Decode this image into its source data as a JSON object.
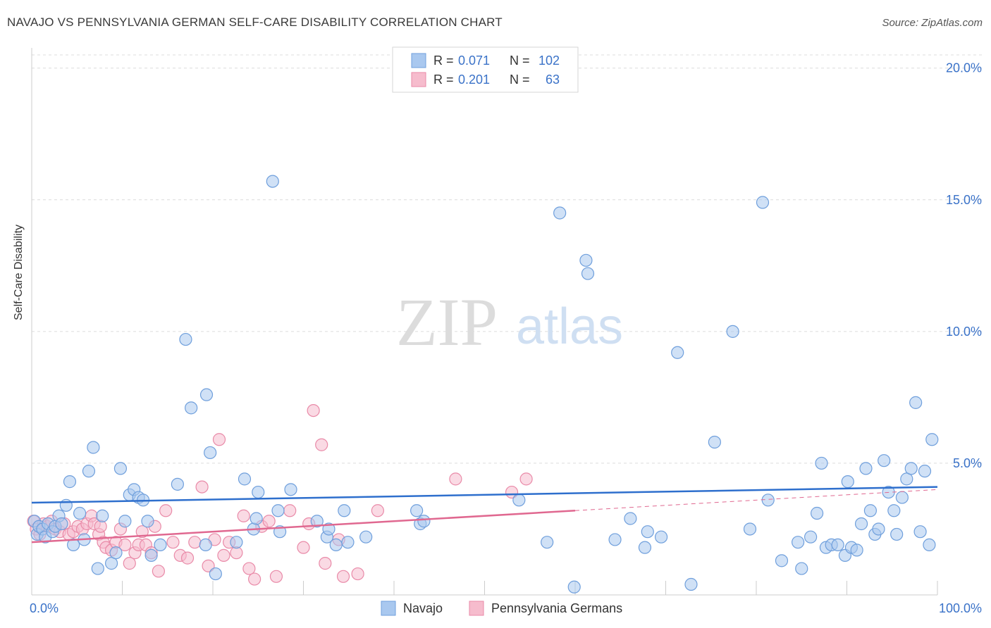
{
  "title": "NAVAJO VS PENNSYLVANIA GERMAN SELF-CARE DISABILITY CORRELATION CHART",
  "source": "Source: ZipAtlas.com",
  "watermark": {
    "zip": "ZIP",
    "atlas": "atlas"
  },
  "colors": {
    "navajo_fill": "#a9c8ef",
    "navajo_stroke": "#6f9fdc",
    "navajo_line": "#2e6fcd",
    "pg_fill": "#f6bccd",
    "pg_stroke": "#e98aa8",
    "pg_line": "#e06890",
    "axis_text": "#3a72c8",
    "grid": "#dcdcdc"
  },
  "legend": {
    "rows": [
      {
        "r_label": "R =",
        "r_value": "0.071",
        "n_label": "N =",
        "n_value": "102"
      },
      {
        "r_label": "R =",
        "r_value": "0.201",
        "n_label": "N =",
        "n_value": "63"
      }
    ]
  },
  "bottom_legend": [
    {
      "name": "Navajo"
    },
    {
      "name": "Pennsylvania Germans"
    }
  ],
  "chart_data": {
    "type": "scatter",
    "title": "NAVAJO VS PENNSYLVANIA GERMAN SELF-CARE DISABILITY CORRELATION CHART",
    "xlabel": "",
    "ylabel": "Self-Care Disability",
    "xlim": [
      0,
      100
    ],
    "ylim": [
      0,
      20.5
    ],
    "x_tick_labels": [
      "0.0%",
      "100.0%"
    ],
    "y_ticks": [
      5,
      10,
      15,
      20
    ],
    "y_tick_labels": [
      "5.0%",
      "10.0%",
      "15.0%",
      "20.0%"
    ],
    "series": [
      {
        "name": "Navajo",
        "r": 0.071,
        "n": 102,
        "trend": {
          "x": [
            0,
            100
          ],
          "y": [
            3.5,
            4.1
          ]
        },
        "points": [
          [
            0.3,
            2.8
          ],
          [
            0.6,
            2.3
          ],
          [
            0.8,
            2.6
          ],
          [
            1.2,
            2.5
          ],
          [
            1.5,
            2.2
          ],
          [
            1.8,
            2.7
          ],
          [
            2.3,
            2.4
          ],
          [
            2.6,
            2.6
          ],
          [
            3.0,
            3.0
          ],
          [
            3.3,
            2.7
          ],
          [
            3.8,
            3.4
          ],
          [
            4.2,
            4.3
          ],
          [
            4.6,
            1.9
          ],
          [
            5.3,
            3.1
          ],
          [
            5.8,
            2.1
          ],
          [
            6.3,
            4.7
          ],
          [
            6.8,
            5.6
          ],
          [
            7.3,
            1.0
          ],
          [
            7.8,
            3.0
          ],
          [
            8.8,
            1.2
          ],
          [
            9.3,
            1.6
          ],
          [
            9.8,
            4.8
          ],
          [
            10.3,
            2.8
          ],
          [
            10.8,
            3.8
          ],
          [
            11.3,
            4.0
          ],
          [
            11.8,
            3.7
          ],
          [
            12.3,
            3.6
          ],
          [
            12.8,
            2.8
          ],
          [
            13.2,
            1.5
          ],
          [
            14.2,
            1.9
          ],
          [
            16.1,
            4.2
          ],
          [
            17.0,
            9.7
          ],
          [
            17.6,
            7.1
          ],
          [
            19.2,
            1.9
          ],
          [
            19.3,
            7.6
          ],
          [
            19.7,
            5.4
          ],
          [
            20.3,
            0.8
          ],
          [
            22.6,
            2.0
          ],
          [
            23.5,
            4.4
          ],
          [
            24.5,
            2.5
          ],
          [
            24.8,
            2.9
          ],
          [
            25.0,
            3.9
          ],
          [
            26.6,
            15.7
          ],
          [
            27.2,
            3.2
          ],
          [
            27.4,
            2.4
          ],
          [
            28.6,
            4.0
          ],
          [
            31.5,
            2.8
          ],
          [
            32.6,
            2.2
          ],
          [
            32.8,
            2.5
          ],
          [
            33.6,
            1.9
          ],
          [
            34.5,
            3.2
          ],
          [
            34.9,
            2.0
          ],
          [
            36.9,
            2.2
          ],
          [
            42.5,
            3.2
          ],
          [
            42.9,
            2.7
          ],
          [
            43.3,
            2.8
          ],
          [
            53.8,
            3.6
          ],
          [
            56.9,
            2.0
          ],
          [
            58.3,
            14.5
          ],
          [
            59.9,
            0.3
          ],
          [
            61.2,
            12.7
          ],
          [
            61.4,
            12.2
          ],
          [
            64.4,
            2.1
          ],
          [
            66.1,
            2.9
          ],
          [
            67.7,
            1.8
          ],
          [
            68.0,
            2.4
          ],
          [
            69.5,
            2.2
          ],
          [
            71.3,
            9.2
          ],
          [
            72.8,
            0.4
          ],
          [
            75.4,
            5.8
          ],
          [
            77.4,
            10.0
          ],
          [
            79.3,
            2.5
          ],
          [
            80.7,
            14.9
          ],
          [
            81.3,
            3.6
          ],
          [
            82.8,
            1.3
          ],
          [
            84.6,
            2.0
          ],
          [
            85.0,
            1.0
          ],
          [
            86.0,
            2.2
          ],
          [
            86.7,
            3.1
          ],
          [
            87.2,
            5.0
          ],
          [
            87.7,
            1.8
          ],
          [
            88.3,
            1.9
          ],
          [
            89.0,
            1.9
          ],
          [
            89.8,
            1.5
          ],
          [
            90.1,
            4.3
          ],
          [
            90.5,
            1.8
          ],
          [
            91.1,
            1.7
          ],
          [
            91.6,
            2.7
          ],
          [
            92.1,
            4.8
          ],
          [
            92.6,
            3.2
          ],
          [
            93.1,
            2.3
          ],
          [
            93.5,
            2.5
          ],
          [
            94.1,
            5.1
          ],
          [
            94.6,
            3.9
          ],
          [
            95.2,
            3.2
          ],
          [
            95.5,
            2.3
          ],
          [
            96.1,
            3.7
          ],
          [
            96.6,
            4.4
          ],
          [
            97.1,
            4.8
          ],
          [
            97.6,
            7.3
          ],
          [
            98.1,
            2.4
          ],
          [
            98.6,
            4.7
          ],
          [
            99.1,
            1.9
          ],
          [
            99.4,
            5.9
          ]
        ]
      },
      {
        "name": "Pennsylvania Germans",
        "r": 0.201,
        "n": 63,
        "trend": {
          "x": [
            0,
            60
          ],
          "y": [
            2.0,
            3.2
          ]
        },
        "trend_extension": {
          "x": [
            60,
            100
          ],
          "y": [
            3.2,
            4.0
          ]
        },
        "points": [
          [
            0.2,
            2.8
          ],
          [
            0.5,
            2.5
          ],
          [
            0.9,
            2.3
          ],
          [
            1.3,
            2.7
          ],
          [
            1.7,
            2.6
          ],
          [
            2.2,
            2.8
          ],
          [
            2.6,
            2.5
          ],
          [
            3.1,
            2.4
          ],
          [
            3.6,
            2.7
          ],
          [
            4.1,
            2.3
          ],
          [
            4.6,
            2.4
          ],
          [
            5.1,
            2.6
          ],
          [
            5.6,
            2.5
          ],
          [
            6.1,
            2.7
          ],
          [
            6.6,
            3.0
          ],
          [
            6.9,
            2.7
          ],
          [
            7.4,
            2.3
          ],
          [
            7.6,
            2.6
          ],
          [
            7.9,
            2.0
          ],
          [
            8.2,
            1.8
          ],
          [
            8.8,
            1.7
          ],
          [
            9.3,
            2.0
          ],
          [
            9.8,
            2.5
          ],
          [
            10.3,
            1.9
          ],
          [
            10.8,
            1.2
          ],
          [
            11.4,
            1.6
          ],
          [
            11.8,
            1.9
          ],
          [
            12.2,
            2.4
          ],
          [
            12.6,
            1.9
          ],
          [
            13.2,
            1.6
          ],
          [
            13.6,
            2.6
          ],
          [
            14.0,
            0.9
          ],
          [
            14.8,
            3.2
          ],
          [
            15.6,
            2.0
          ],
          [
            16.4,
            1.5
          ],
          [
            17.2,
            1.4
          ],
          [
            18.0,
            2.0
          ],
          [
            18.8,
            4.1
          ],
          [
            19.5,
            1.1
          ],
          [
            20.2,
            2.1
          ],
          [
            20.7,
            5.9
          ],
          [
            21.2,
            1.5
          ],
          [
            21.8,
            2.0
          ],
          [
            22.6,
            1.6
          ],
          [
            23.4,
            3.0
          ],
          [
            24.0,
            1.0
          ],
          [
            24.6,
            0.6
          ],
          [
            25.4,
            2.6
          ],
          [
            26.2,
            2.8
          ],
          [
            27.0,
            0.7
          ],
          [
            28.5,
            3.2
          ],
          [
            30.0,
            1.8
          ],
          [
            30.6,
            2.7
          ],
          [
            31.1,
            7.0
          ],
          [
            32.0,
            5.7
          ],
          [
            32.4,
            1.2
          ],
          [
            33.9,
            2.1
          ],
          [
            34.4,
            0.7
          ],
          [
            36.0,
            0.8
          ],
          [
            38.2,
            3.2
          ],
          [
            46.8,
            4.4
          ],
          [
            53.0,
            3.9
          ],
          [
            54.6,
            4.4
          ]
        ]
      }
    ]
  }
}
